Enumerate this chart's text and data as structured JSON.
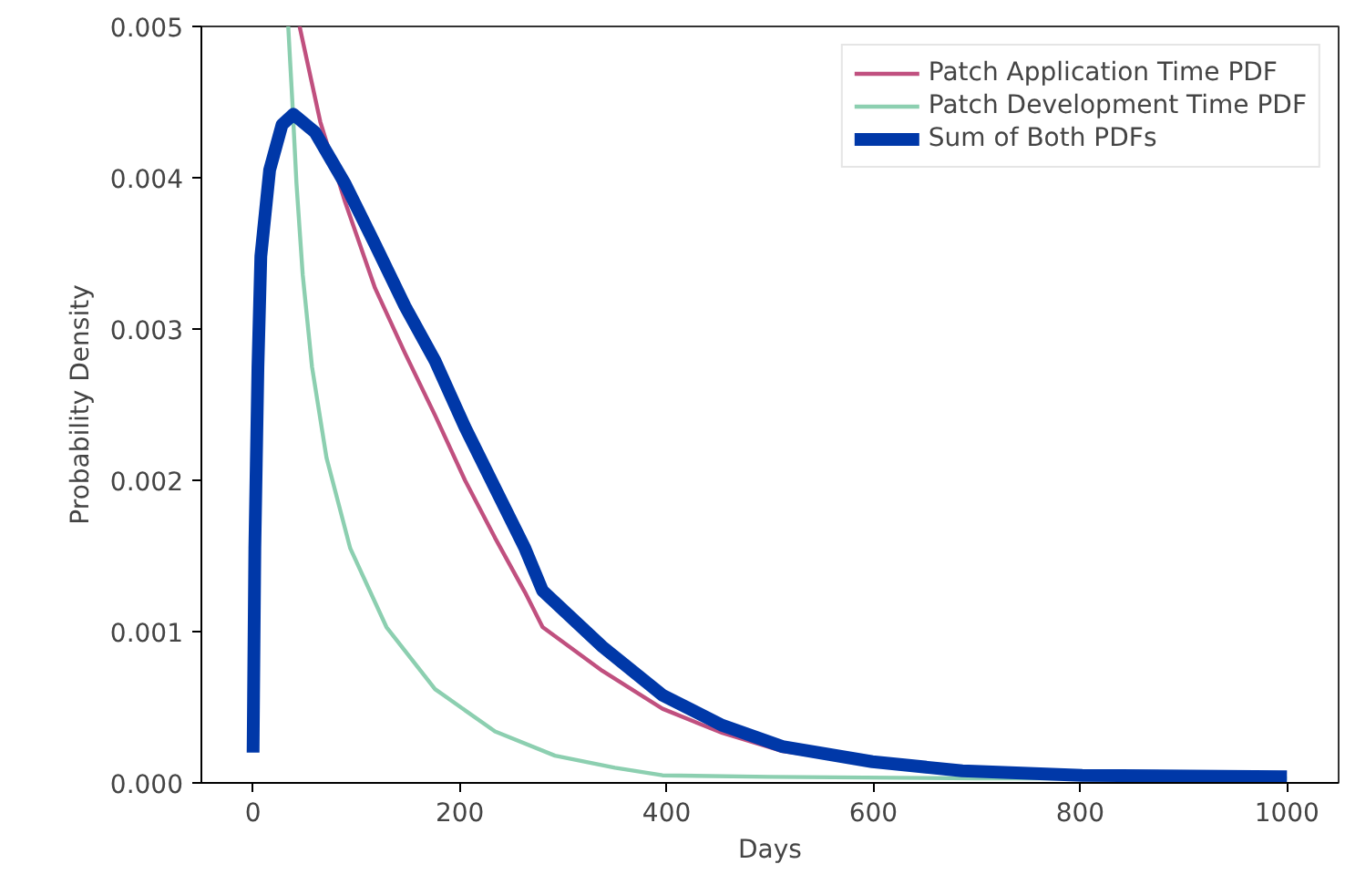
{
  "chart_data": {
    "type": "line",
    "xlabel": "Days",
    "ylabel": "Probability Density",
    "xlim": [
      -50,
      1050
    ],
    "ylim": [
      0,
      0.005
    ],
    "xticks": [
      0,
      200,
      400,
      600,
      800,
      1000
    ],
    "yticks": [
      {
        "value": 0,
        "label": "0.000"
      },
      {
        "value": 0.001,
        "label": "0.001"
      },
      {
        "value": 0.002,
        "label": "0.002"
      },
      {
        "value": 0.003,
        "label": "0.003"
      },
      {
        "value": 0.004,
        "label": "0.004"
      },
      {
        "value": 0.005,
        "label": "0.005"
      }
    ],
    "legend": "top right",
    "line_style": "solid",
    "series": [
      {
        "name": "Patch Application Time PDF",
        "color": "#c0507f",
        "x": [
          45,
          65,
          89,
          118,
          147,
          176,
          205,
          234,
          263,
          280,
          338,
          396,
          454,
          512,
          599
        ],
        "values": [
          0.005,
          0.00437,
          0.00384,
          0.00327,
          0.00284,
          0.00243,
          0.002,
          0.00162,
          0.00126,
          0.00103,
          0.00074,
          0.00049,
          0.00033,
          0.00021,
          0.00013
        ]
      },
      {
        "name": "Patch Development Time PDF",
        "color": "#8ccfb0",
        "x": [
          34,
          38,
          42,
          48,
          57,
          71,
          94,
          129,
          176,
          234,
          292,
          350,
          396,
          500,
          700,
          1000
        ],
        "values": [
          0.005,
          0.0045,
          0.00396,
          0.00336,
          0.00275,
          0.00215,
          0.00155,
          0.00103,
          0.00062,
          0.00034,
          0.00018,
          0.0001,
          5e-05,
          4e-05,
          3e-05,
          3e-05
        ]
      },
      {
        "name": "Sum of Both PDFs",
        "color": "#0038a8",
        "x": [
          0,
          1.7,
          4.7,
          7.5,
          16,
          28,
          39,
          60,
          89,
          118,
          147,
          176,
          205,
          234,
          263,
          280,
          338,
          396,
          454,
          512,
          599,
          686,
          802,
          1000
        ],
        "values": [
          0.0002,
          0.00155,
          0.00275,
          0.00348,
          0.00405,
          0.00435,
          0.00442,
          0.0043,
          0.00396,
          0.00356,
          0.00315,
          0.00279,
          0.00235,
          0.00195,
          0.00155,
          0.00127,
          0.0009,
          0.00058,
          0.00038,
          0.00024,
          0.00014,
          8e-05,
          5e-05,
          4e-05
        ]
      }
    ]
  }
}
